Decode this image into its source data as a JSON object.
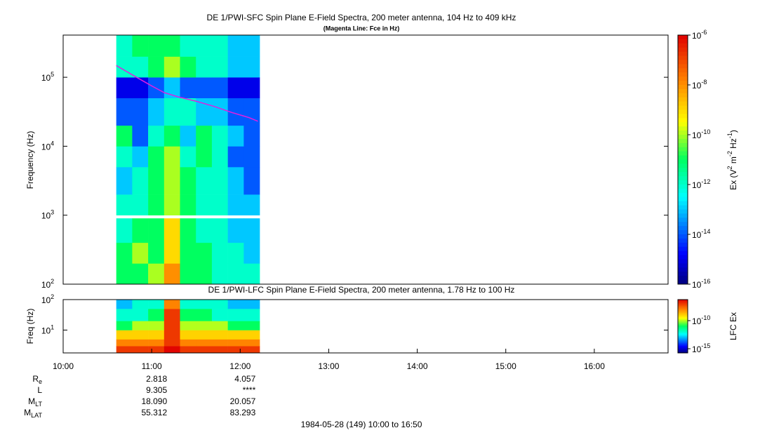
{
  "chart_data": [
    {
      "type": "spectrogram",
      "title": "DE 1/PWI-SFC  Spin Plane E-Field Spectra, 200 meter antenna, 104 Hz to 409 kHz",
      "subtitle": "(Magenta Line: Fce in Hz)",
      "y_label": "Frequency (Hz)",
      "colorbar_label": "Ex (V^2 m^-2 Hz^-1)",
      "xlim": [
        10,
        16.8333
      ],
      "ylim": [
        100,
        409000
      ],
      "ylog": true,
      "yticks": [
        {
          "value": 100,
          "label": "10^2"
        },
        {
          "value": 1000,
          "label": "10^3"
        },
        {
          "value": 10000,
          "label": "10^4"
        },
        {
          "value": 100000,
          "label": "10^5"
        }
      ],
      "zlim": [
        1e-16,
        1e-06
      ],
      "zlog": true,
      "zticks": [
        {
          "value": 1e-06,
          "label": "10^-6"
        },
        {
          "value": 1e-08,
          "label": "10^-8"
        },
        {
          "value": 1e-10,
          "label": "10^-10"
        },
        {
          "value": 1e-12,
          "label": "10^-12"
        },
        {
          "value": 1e-14,
          "label": "10^-14"
        },
        {
          "value": 1e-16,
          "label": "10^-16"
        }
      ],
      "time_edges": [
        10.6,
        10.78,
        10.96,
        11.14,
        11.32,
        11.5,
        11.68,
        11.86,
        12.04,
        12.22
      ],
      "freq_edges": [
        100,
        200,
        400,
        900,
        1000,
        2000,
        5000,
        10000,
        20000,
        50000,
        100000,
        200000,
        409000
      ],
      "z": [
        [
          1e-11,
          1e-11,
          1e-10,
          1e-08,
          1e-11,
          1e-11,
          1e-12,
          1e-12,
          1e-12
        ],
        [
          1e-11,
          1e-10,
          1e-11,
          1e-09,
          1e-11,
          1e-11,
          1e-12,
          1e-12,
          1e-13
        ],
        [
          1e-12,
          1e-11,
          1e-11,
          1e-09,
          1e-11,
          1e-12,
          1e-12,
          1e-13,
          1e-13
        ],
        [
          null,
          null,
          null,
          null,
          null,
          null,
          null,
          null,
          null
        ],
        [
          1e-12,
          1e-12,
          1e-11,
          1e-10,
          1e-11,
          1e-12,
          1e-12,
          1e-13,
          1e-13
        ],
        [
          1e-13,
          1e-12,
          1e-11,
          1e-10,
          1e-11,
          1e-12,
          1e-12,
          1e-13,
          1e-14
        ],
        [
          1e-12,
          1e-13,
          1e-11,
          1e-10,
          1e-12,
          1e-11,
          1e-12,
          1e-14,
          1e-14
        ],
        [
          1e-11,
          1e-14,
          1e-12,
          1e-11,
          1e-13,
          1e-11,
          1e-12,
          1e-13,
          1e-14
        ],
        [
          1e-14,
          1e-14,
          1e-13,
          1e-12,
          1e-12,
          1e-13,
          1e-13,
          1e-14,
          1e-14
        ],
        [
          1e-15,
          1e-15,
          1e-14,
          1e-13,
          1e-14,
          1e-14,
          1e-14,
          1e-15,
          1e-15
        ],
        [
          1e-12,
          1e-12,
          1e-11,
          1e-10,
          1e-11,
          1e-12,
          1e-12,
          1e-13,
          1e-13
        ],
        [
          1e-12,
          1e-11,
          1e-11,
          1e-11,
          1e-12,
          1e-12,
          1e-12,
          1e-13,
          1e-13
        ]
      ],
      "series": [
        {
          "color": "#e020e0",
          "x": [
            10.6,
            10.8,
            11.0,
            11.14,
            11.3,
            11.5,
            11.7,
            11.9,
            12.1,
            12.2
          ],
          "values": [
            148000,
            105000,
            75000,
            60000,
            52000,
            45000,
            38000,
            31000,
            26000,
            23000
          ]
        }
      ]
    },
    {
      "type": "spectrogram",
      "title": "DE 1/PWI-LFC  Spin Plane E-Field Spectra, 200 meter antenna, 1.78 Hz to 100 Hz",
      "y_label": "Freq (Hz)",
      "colorbar_label": "LFC Ex",
      "xlim": [
        10,
        16.8333
      ],
      "xticks": [
        {
          "value": 10,
          "label": "10:00"
        },
        {
          "value": 11,
          "label": "11:00"
        },
        {
          "value": 12,
          "label": "12:00"
        },
        {
          "value": 13,
          "label": "13:00"
        },
        {
          "value": 14,
          "label": "14:00"
        },
        {
          "value": 15,
          "label": "15:00"
        },
        {
          "value": 16,
          "label": "16:00"
        }
      ],
      "ylim": [
        1.78,
        100
      ],
      "ylog": true,
      "yticks": [
        {
          "value": 10,
          "label": "10^1"
        },
        {
          "value": 100,
          "label": "10^2"
        }
      ],
      "zlim": [
        1.8e-16,
        5.6e-07
      ],
      "zlog": true,
      "zticks": [
        {
          "value": 1e-10,
          "label": "10^-10"
        },
        {
          "value": 1e-15,
          "label": "10^-15"
        }
      ],
      "time_edges": [
        10.6,
        10.78,
        10.96,
        11.14,
        11.32,
        11.5,
        11.68,
        11.86,
        12.04,
        12.22
      ],
      "freq_edges": [
        1.78,
        3,
        5,
        10,
        20,
        50,
        100
      ],
      "z": [
        [
          1e-07,
          1e-07,
          1e-07,
          5e-07,
          1e-07,
          1e-07,
          1e-07,
          1e-07,
          1e-07
        ],
        [
          1e-08,
          1e-08,
          1e-08,
          1e-07,
          1e-08,
          1e-08,
          1e-08,
          1e-08,
          1e-08
        ],
        [
          1e-09,
          1e-09,
          1e-09,
          1e-07,
          1e-09,
          1e-09,
          1e-09,
          1e-09,
          1e-09
        ],
        [
          1e-11,
          1e-10,
          1e-10,
          1e-07,
          1e-10,
          1e-10,
          1e-10,
          1e-11,
          1e-11
        ],
        [
          1e-12,
          1e-12,
          1e-11,
          1e-07,
          1e-11,
          1e-11,
          1e-12,
          1e-12,
          1e-12
        ],
        [
          1e-13,
          1e-12,
          1e-12,
          1e-08,
          1e-12,
          1e-12,
          1e-12,
          1e-13,
          1e-13
        ]
      ]
    }
  ],
  "ephemeris": {
    "rows": [
      {
        "label": "R_e",
        "values": [
          "2.818",
          "4.057"
        ]
      },
      {
        "label": "L",
        "values": [
          "9.305",
          "****"
        ]
      },
      {
        "label": "M_LT",
        "values": [
          "18.090",
          "20.057"
        ]
      },
      {
        "label": "M_LAT",
        "values": [
          "55.312",
          "83.293"
        ]
      }
    ],
    "times": [
      11,
      12
    ]
  },
  "footer": "1984-05-28 (149) 10:00 to 16:50"
}
